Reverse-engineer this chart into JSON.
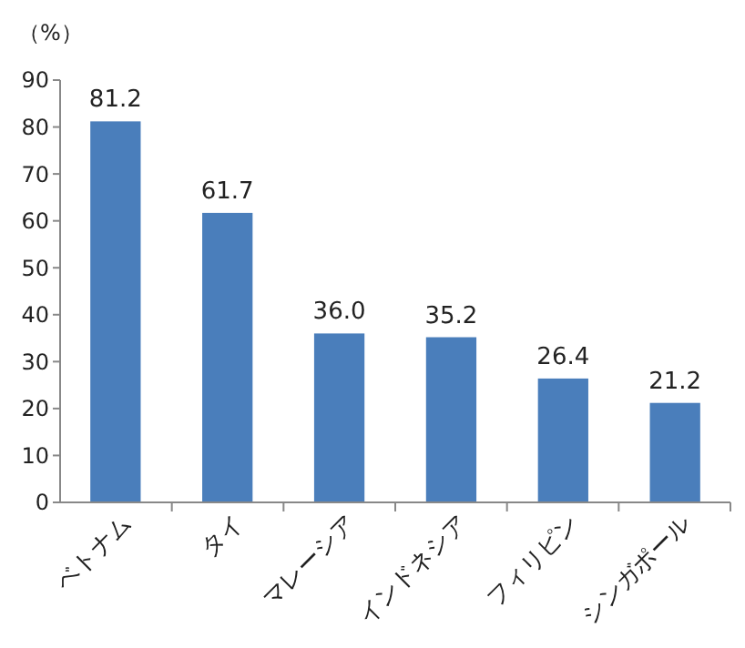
{
  "chart_data": {
    "type": "bar",
    "ylabel": "（%）",
    "categories": [
      "ベトナム",
      "タイ",
      "マレーシア",
      "インドネシア",
      "フィリピン",
      "シンガポール"
    ],
    "values": [
      81.2,
      61.7,
      36.0,
      35.2,
      26.4,
      21.2
    ],
    "value_labels": [
      "81.2",
      "61.7",
      "36.0",
      "35.2",
      "26.4",
      "21.2"
    ],
    "color": "#4a7ebb",
    "ylim": [
      0,
      90
    ],
    "yticks": [
      0,
      10,
      20,
      30,
      40,
      50,
      60,
      70,
      80,
      90
    ],
    "grid": false
  }
}
